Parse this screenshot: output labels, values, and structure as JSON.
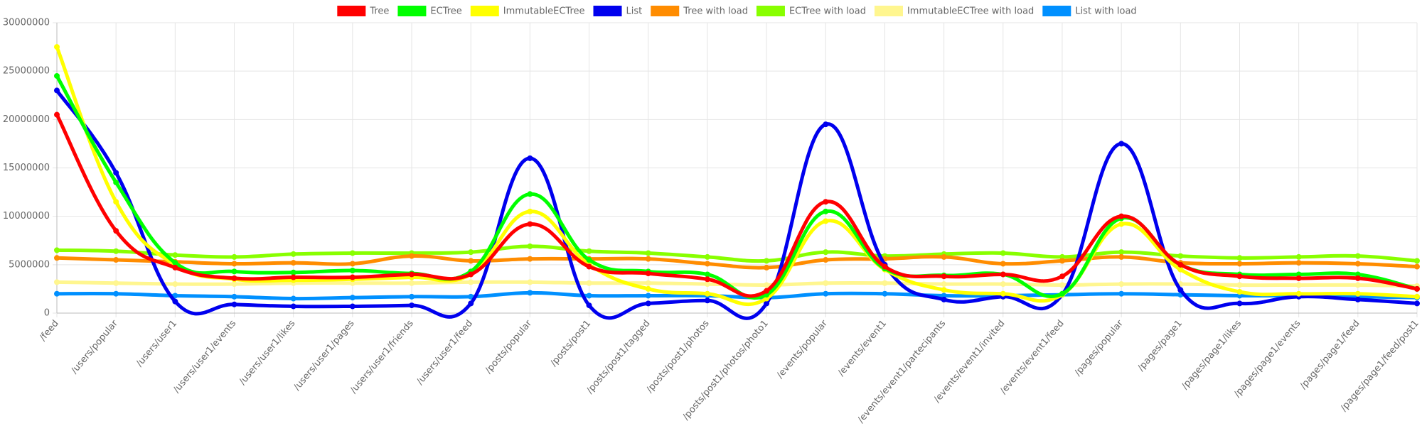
{
  "chart_data": {
    "type": "line",
    "categories": [
      "/feed",
      "/users/popular",
      "/users/user1",
      "/users/user1/events",
      "/users/user1/likes",
      "/users/user1/pages",
      "/users/user1/friends",
      "/users/user1/feed",
      "/posts/popular",
      "/posts/post1",
      "/posts/post1/tagged",
      "/posts/post1/photos",
      "/posts/post1/photos/photo1",
      "/events/popular",
      "/events/event1",
      "/events/event1/partecipants",
      "/events/event1/invited",
      "/events/event1/feed",
      "/pages/popular",
      "/pages/page1",
      "/pages/page1/likes",
      "/pages/page1/events",
      "/pages/page1/feed",
      "/pages/page1/feed/post1"
    ],
    "series": [
      {
        "name": "Tree",
        "color": "#ff0000",
        "values": [
          20500000,
          8500000,
          4700000,
          3600000,
          3700000,
          3700000,
          4000000,
          4000000,
          9200000,
          4800000,
          4100000,
          3500000,
          2300000,
          11500000,
          4800000,
          3800000,
          4000000,
          3800000,
          10000000,
          5000000,
          3800000,
          3600000,
          3600000,
          2500000
        ]
      },
      {
        "name": "ECTree",
        "color": "#00ff00",
        "values": [
          24500000,
          13500000,
          5200000,
          4300000,
          4200000,
          4400000,
          4100000,
          4300000,
          12300000,
          5500000,
          4300000,
          4000000,
          1900000,
          10500000,
          4600000,
          3900000,
          4000000,
          2000000,
          9800000,
          5000000,
          4000000,
          4000000,
          4000000,
          2500000
        ]
      },
      {
        "name": "ImmutableECTree",
        "color": "#ffff00",
        "values": [
          27500000,
          11500000,
          5000000,
          3500000,
          3400000,
          3500000,
          3700000,
          4000000,
          10500000,
          5000000,
          2500000,
          2000000,
          1500000,
          9500000,
          4500000,
          2400000,
          2000000,
          1900000,
          9200000,
          4500000,
          2200000,
          2000000,
          2000000,
          1700000
        ]
      },
      {
        "name": "List",
        "color": "#0000ee",
        "values": [
          23000000,
          14500000,
          1200000,
          900000,
          700000,
          700000,
          800000,
          1000000,
          16000000,
          800000,
          1000000,
          1300000,
          1000000,
          19500000,
          5000000,
          1400000,
          1700000,
          1900000,
          17500000,
          2400000,
          1000000,
          1700000,
          1400000,
          1000000
        ]
      },
      {
        "name": "Tree with load",
        "color": "#ff8c00",
        "values": [
          5700000,
          5500000,
          5300000,
          5100000,
          5200000,
          5100000,
          5900000,
          5400000,
          5600000,
          5600000,
          5600000,
          5100000,
          4700000,
          5500000,
          5600000,
          5800000,
          5100000,
          5400000,
          5800000,
          5200000,
          5100000,
          5200000,
          5100000,
          4800000
        ]
      },
      {
        "name": "ECTree with load",
        "color": "#88ff00",
        "values": [
          6500000,
          6400000,
          6000000,
          5800000,
          6100000,
          6200000,
          6200000,
          6300000,
          6900000,
          6400000,
          6200000,
          5800000,
          5400000,
          6300000,
          5900000,
          6100000,
          6200000,
          5800000,
          6300000,
          5900000,
          5700000,
          5800000,
          5900000,
          5400000
        ]
      },
      {
        "name": "ImmutableECTree with load",
        "color": "#fff68f",
        "values": [
          3200000,
          3100000,
          3000000,
          3000000,
          3100000,
          3100000,
          3100000,
          3200000,
          3200000,
          3100000,
          3100000,
          3000000,
          2900000,
          3100000,
          3100000,
          3000000,
          3000000,
          2900000,
          3000000,
          3000000,
          2900000,
          2900000,
          2900000,
          2800000
        ]
      },
      {
        "name": "List with load",
        "color": "#0090ff",
        "values": [
          2000000,
          2000000,
          1800000,
          1700000,
          1500000,
          1600000,
          1700000,
          1700000,
          2100000,
          1800000,
          1800000,
          1800000,
          1600000,
          2000000,
          2000000,
          1800000,
          1800000,
          1900000,
          2000000,
          1900000,
          1800000,
          1800000,
          1700000,
          1600000
        ]
      }
    ],
    "ylim": [
      0,
      30000000
    ],
    "yticks": [
      0,
      5000000,
      10000000,
      15000000,
      20000000,
      25000000,
      30000000
    ],
    "grid": true,
    "legend": "top"
  }
}
